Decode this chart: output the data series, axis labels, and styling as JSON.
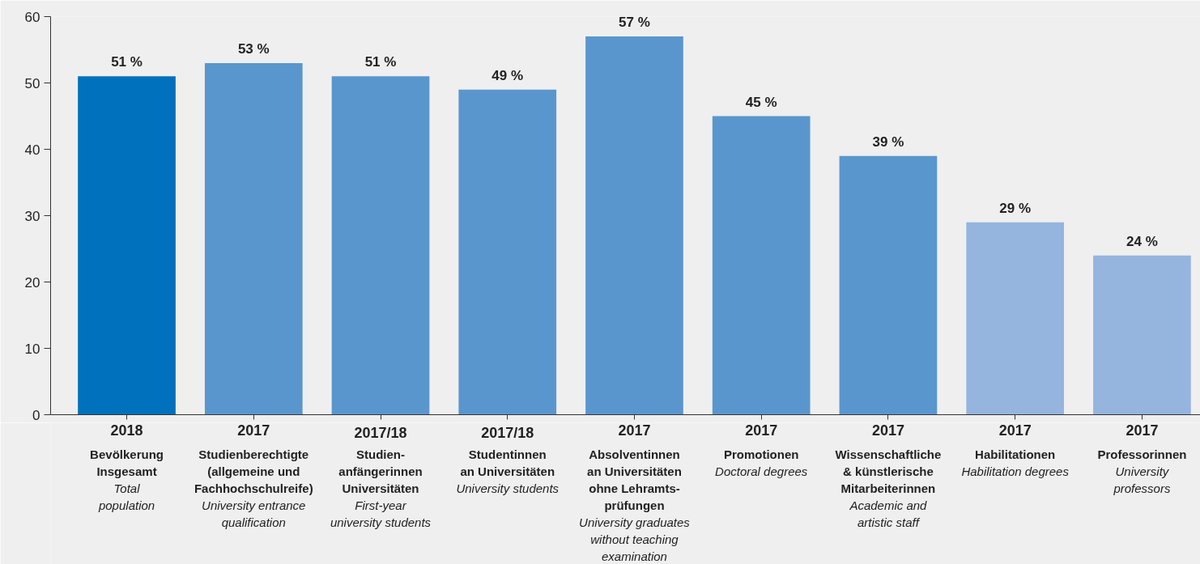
{
  "chart_data": {
    "type": "bar",
    "categories": [
      "2018\n\nBevölkerung\nInsgesamt\n\nTotal\npopulation",
      "2017\n\nStudienberechtigte\n(allgemeine und\nFachhochschulreife)\n\nUniversity entrance\nqualification",
      "2017/18\n\nStudien-\nanfängerinnen\nUniversitäten\n\nFirst-year\nuniversity students",
      "2017/18\n\nStudentinnen\nan Universitäten\n\nUniversity students",
      "2017\n\nAbsolventinnen\nan Universitäten\nohne Lehramts-\nprüfungen\n\nUniversity graduates\nwithout teaching\nexamination",
      "2017\n\nPromotionen\n\nDoctoral degrees",
      "2017\n\nWissenschaftliche\n& künstlerische\nMitarbeiterinnen\n\nAcademic and\nartistic staff",
      "2017\n\nHabilitationen\n\nHabilitation degrees",
      "2017\n\nProfessorinnen\n\nUniversity\nprofessors"
    ],
    "values": [
      51,
      53,
      51,
      49,
      57,
      45,
      39,
      29,
      24
    ],
    "colors": [
      "#0071bc",
      "#5a96ce",
      "#5a96ce",
      "#5a96ce",
      "#5a96ce",
      "#5a96ce",
      "#5a96ce",
      "#95b5df",
      "#95b5df"
    ],
    "value_labels": [
      "51 %",
      "53 %",
      "51 %",
      "49 %",
      "57 %",
      "45 %",
      "39 %",
      "29 %",
      "24 %"
    ],
    "ylim": [
      0,
      60
    ],
    "yticks": [
      0,
      10,
      20,
      30,
      40,
      50,
      60
    ],
    "grid": false
  }
}
